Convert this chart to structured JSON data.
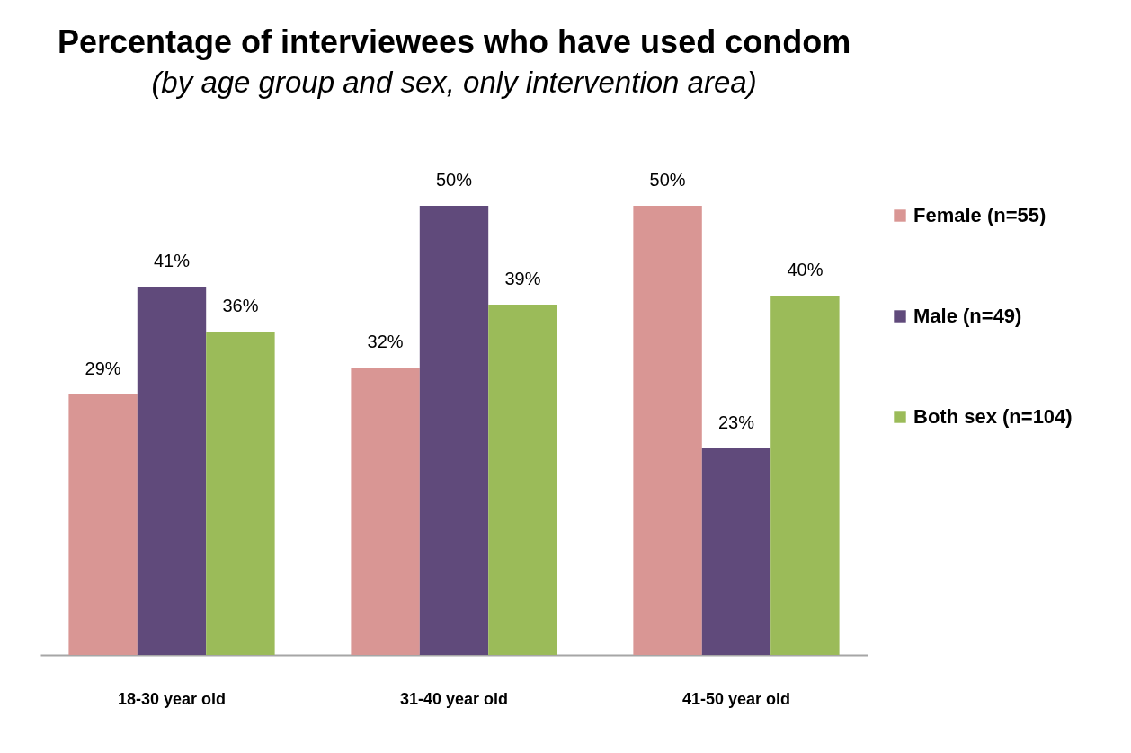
{
  "chart_data": {
    "type": "bar",
    "title": "Percentage of interviewees who have used condom",
    "subtitle": "(by age group and sex, only intervention area)",
    "categories": [
      "18-30 year old",
      "31-40 year old",
      "41-50 year old"
    ],
    "series": [
      {
        "name": "Female (n=55)",
        "color": "#d99694",
        "values": [
          29,
          32,
          50
        ],
        "value_labels": [
          "29%",
          "32%",
          "50%"
        ]
      },
      {
        "name": "Male (n=49)",
        "color": "#604a7b",
        "values": [
          41,
          50,
          23
        ],
        "value_labels": [
          "41%",
          "50%",
          "23%"
        ]
      },
      {
        "name": "Both sex (n=104)",
        "color": "#9bbb59",
        "values": [
          36,
          39,
          40
        ],
        "value_labels": [
          "36%",
          "39%",
          "40%"
        ]
      }
    ],
    "tick_labels": "x",
    "grid": false,
    "legend": "right"
  }
}
